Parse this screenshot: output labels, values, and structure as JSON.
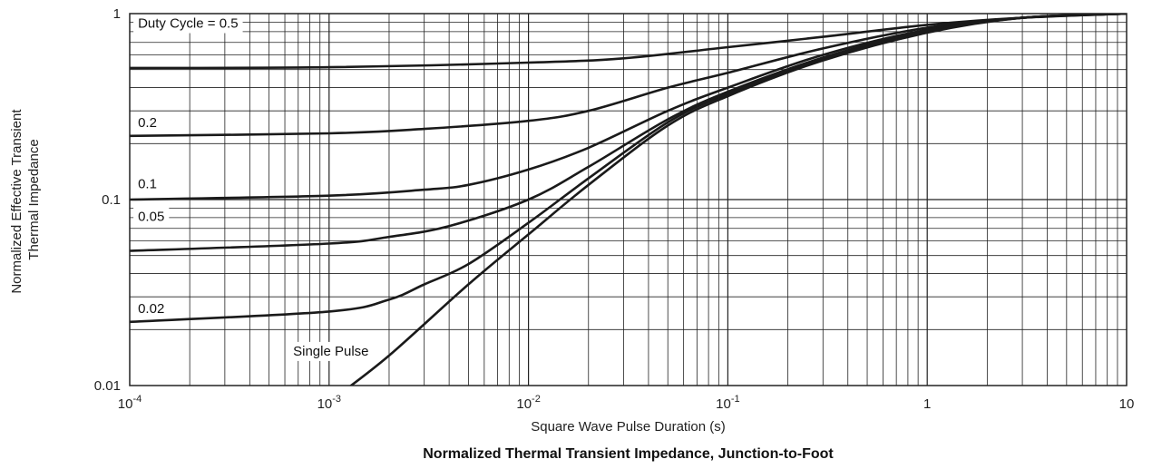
{
  "chart_data": {
    "type": "line",
    "title": "Normalized Thermal Transient Impedance, Junction-to-Foot",
    "xlabel": "Square Wave Pulse Duration (s)",
    "ylabel": [
      "Normalized Effective Transient",
      "Thermal Impedance"
    ],
    "x_scale": "log",
    "y_scale": "log",
    "xlim": [
      0.0001,
      10
    ],
    "ylim": [
      0.01,
      1
    ],
    "grid": true,
    "x_ticks": [
      {
        "value": 0.0001,
        "base": "10",
        "exp": "-4"
      },
      {
        "value": 0.001,
        "base": "10",
        "exp": "-3"
      },
      {
        "value": 0.01,
        "base": "10",
        "exp": "-2"
      },
      {
        "value": 0.1,
        "base": "10",
        "exp": "-1"
      },
      {
        "value": 1,
        "base": "1",
        "exp": ""
      },
      {
        "value": 10,
        "base": "10",
        "exp": ""
      }
    ],
    "y_ticks": [
      {
        "value": 1,
        "label": "1"
      },
      {
        "value": 0.1,
        "label": "0.1"
      },
      {
        "value": 0.01,
        "label": "0.01"
      }
    ],
    "series": [
      {
        "name": "Duty Cycle = 0.5",
        "label_pos": [
          0.00011,
          0.84
        ],
        "points": [
          [
            0.0001,
            0.51
          ],
          [
            0.001,
            0.515
          ],
          [
            0.01,
            0.545
          ],
          [
            0.03,
            0.575
          ],
          [
            0.1,
            0.66
          ],
          [
            0.3,
            0.75
          ],
          [
            1,
            0.87
          ],
          [
            3,
            0.95
          ],
          [
            10,
            1.0
          ]
        ]
      },
      {
        "name": "0.2",
        "label_pos": [
          0.00011,
          0.245
        ],
        "points": [
          [
            0.0001,
            0.22
          ],
          [
            0.001,
            0.227
          ],
          [
            0.003,
            0.24
          ],
          [
            0.01,
            0.265
          ],
          [
            0.02,
            0.3
          ],
          [
            0.05,
            0.4
          ],
          [
            0.1,
            0.48
          ],
          [
            0.3,
            0.65
          ],
          [
            1,
            0.84
          ],
          [
            3,
            0.95
          ],
          [
            10,
            1.0
          ]
        ]
      },
      {
        "name": "0.1",
        "label_pos": [
          0.00011,
          0.115
        ],
        "points": [
          [
            0.0001,
            0.1
          ],
          [
            0.001,
            0.105
          ],
          [
            0.003,
            0.113
          ],
          [
            0.005,
            0.12
          ],
          [
            0.01,
            0.145
          ],
          [
            0.02,
            0.19
          ],
          [
            0.05,
            0.3
          ],
          [
            0.1,
            0.4
          ],
          [
            0.3,
            0.6
          ],
          [
            1,
            0.82
          ],
          [
            3,
            0.95
          ],
          [
            10,
            1.0
          ]
        ]
      },
      {
        "name": "0.05",
        "label_pos": [
          0.00011,
          0.077
        ],
        "points": [
          [
            0.0001,
            0.053
          ],
          [
            0.001,
            0.058
          ],
          [
            0.002,
            0.063
          ],
          [
            0.004,
            0.072
          ],
          [
            0.01,
            0.1
          ],
          [
            0.02,
            0.15
          ],
          [
            0.05,
            0.27
          ],
          [
            0.1,
            0.38
          ],
          [
            0.3,
            0.58
          ],
          [
            1,
            0.81
          ],
          [
            3,
            0.95
          ],
          [
            10,
            1.0
          ]
        ]
      },
      {
        "name": "0.02",
        "label_pos": [
          0.00011,
          0.0245
        ],
        "points": [
          [
            0.0001,
            0.022
          ],
          [
            0.001,
            0.025
          ],
          [
            0.002,
            0.029
          ],
          [
            0.003,
            0.035
          ],
          [
            0.005,
            0.045
          ],
          [
            0.01,
            0.075
          ],
          [
            0.02,
            0.13
          ],
          [
            0.05,
            0.26
          ],
          [
            0.1,
            0.37
          ],
          [
            0.3,
            0.57
          ],
          [
            1,
            0.8
          ],
          [
            3,
            0.95
          ],
          [
            10,
            1.0
          ]
        ]
      },
      {
        "name": "Single Pulse",
        "label_pos": [
          0.00066,
          0.0145
        ],
        "points": [
          [
            0.0011,
            0.0088
          ],
          [
            0.002,
            0.0145
          ],
          [
            0.005,
            0.035
          ],
          [
            0.01,
            0.065
          ],
          [
            0.02,
            0.12
          ],
          [
            0.05,
            0.25
          ],
          [
            0.1,
            0.36
          ],
          [
            0.3,
            0.56
          ],
          [
            1,
            0.79
          ],
          [
            3,
            0.95
          ],
          [
            10,
            1.0
          ]
        ]
      }
    ]
  }
}
